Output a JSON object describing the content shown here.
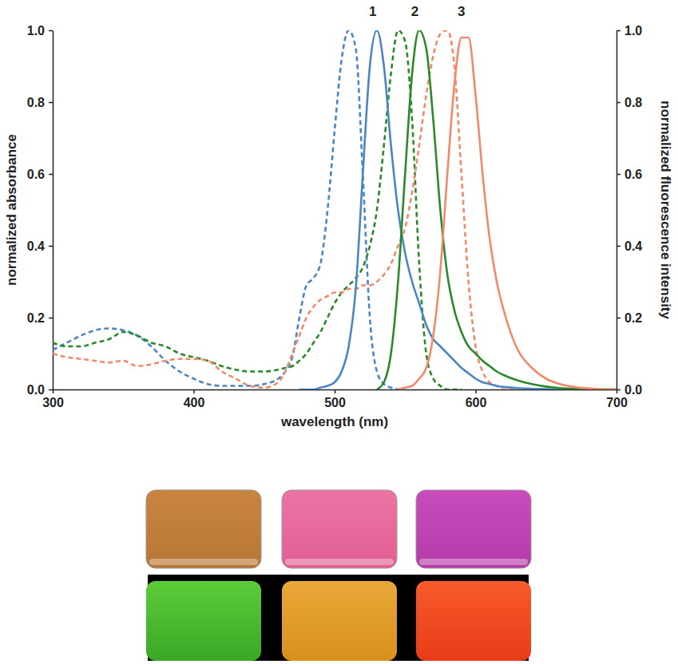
{
  "chart_data": {
    "type": "line",
    "x_label": "wavelength (nm)",
    "y_label": "normalized absorbance",
    "y2_label": "normalized fluorescence intensity",
    "xlim": [
      300,
      700
    ],
    "xticks": [
      300,
      400,
      500,
      600,
      700
    ],
    "ylim": [
      0,
      1.0
    ],
    "yticks": [
      {
        "value": 0,
        "label": "0.0"
      },
      {
        "value": 0.2,
        "label": "0.2"
      },
      {
        "value": 0.4,
        "label": "0.4"
      },
      {
        "value": 0.6,
        "label": "0.6"
      },
      {
        "value": 0.8,
        "label": "0.8"
      },
      {
        "value": 1.0,
        "label": "1.0"
      }
    ],
    "y2lim": [
      0,
      1.0
    ],
    "y2ticks": [
      {
        "value": 0,
        "label": "0.0"
      },
      {
        "value": 0.2,
        "label": "0.2"
      },
      {
        "value": 0.4,
        "label": "0.4"
      },
      {
        "value": 0.6,
        "label": "0.6"
      },
      {
        "value": 0.8,
        "label": "0.8"
      },
      {
        "value": 1.0,
        "label": "1.0"
      }
    ],
    "grid": false,
    "annotations": [
      {
        "text": "1",
        "x": 527,
        "y": 1.04
      },
      {
        "text": "2",
        "x": 557,
        "y": 1.04
      },
      {
        "text": "3",
        "x": 590,
        "y": 1.04
      }
    ],
    "x": [
      300,
      310,
      320,
      330,
      340,
      350,
      360,
      370,
      380,
      390,
      400,
      410,
      420,
      430,
      440,
      450,
      460,
      465,
      470,
      475,
      480,
      485,
      490,
      495,
      500,
      505,
      510,
      515,
      520,
      525,
      530,
      535,
      540,
      545,
      550,
      555,
      560,
      565,
      570,
      575,
      580,
      585,
      590,
      595,
      600,
      605,
      610,
      615,
      620,
      630,
      640,
      650,
      660,
      670,
      680,
      690,
      700
    ],
    "series": [
      {
        "color": "#4a86c5",
        "line_style": "dashed",
        "values": [
          0.11,
          0.13,
          0.15,
          0.165,
          0.17,
          0.165,
          0.15,
          0.12,
          0.08,
          0.05,
          0.03,
          0.015,
          0.01,
          0.01,
          0.01,
          0.015,
          0.03,
          0.05,
          0.09,
          0.2,
          0.29,
          0.31,
          0.35,
          0.5,
          0.72,
          0.92,
          1.0,
          0.95,
          0.6,
          0.2,
          0.05,
          0.015,
          0.005,
          0,
          0,
          null,
          null,
          null,
          null,
          null,
          null,
          null,
          null,
          null,
          null,
          null,
          null,
          null,
          null,
          null,
          null,
          null,
          null,
          null,
          null,
          null,
          null
        ]
      },
      {
        "color": "#2a8a2a",
        "line_style": "dashed",
        "values": [
          0.13,
          0.12,
          0.12,
          0.13,
          0.14,
          0.16,
          0.15,
          0.13,
          0.12,
          0.1,
          0.09,
          0.08,
          0.065,
          0.055,
          0.05,
          0.05,
          0.055,
          0.06,
          0.065,
          0.08,
          0.1,
          0.13,
          0.16,
          0.2,
          0.24,
          0.27,
          0.29,
          0.31,
          0.34,
          0.4,
          0.5,
          0.68,
          0.88,
          1.0,
          0.97,
          0.75,
          0.35,
          0.1,
          0.03,
          0.01,
          0,
          0,
          0,
          null,
          null,
          null,
          null,
          null,
          null,
          null,
          null,
          null,
          null,
          null,
          null,
          null,
          null
        ]
      },
      {
        "color": "#f08a6a",
        "line_style": "dashed",
        "values": [
          0.1,
          0.09,
          0.085,
          0.08,
          0.075,
          0.08,
          0.065,
          0.07,
          0.08,
          0.085,
          0.085,
          0.08,
          0.05,
          0.03,
          0.01,
          0.005,
          0.02,
          0.05,
          0.1,
          0.15,
          0.2,
          0.23,
          0.25,
          0.26,
          0.27,
          0.27,
          0.28,
          0.28,
          0.29,
          0.29,
          0.3,
          0.32,
          0.35,
          0.4,
          0.45,
          0.55,
          0.68,
          0.82,
          0.93,
          0.99,
          1.0,
          0.9,
          0.6,
          0.3,
          0.12,
          0.05,
          0.02,
          0.01,
          0,
          0,
          null,
          null,
          null,
          null,
          null,
          null,
          null
        ]
      },
      {
        "color": "#4a86c5",
        "line_style": "solid",
        "axis": "y2",
        "values": [
          null,
          null,
          null,
          null,
          null,
          null,
          null,
          null,
          null,
          null,
          null,
          null,
          null,
          null,
          null,
          null,
          null,
          null,
          null,
          0,
          0,
          0,
          0.005,
          0.01,
          0.02,
          0.05,
          0.12,
          0.28,
          0.6,
          0.9,
          1.0,
          0.9,
          0.68,
          0.5,
          0.38,
          0.3,
          0.24,
          0.18,
          0.14,
          0.12,
          0.1,
          0.08,
          0.06,
          0.045,
          0.03,
          0.02,
          0.015,
          0.01,
          0.007,
          0.004,
          0.002,
          0.001,
          0,
          0,
          0,
          0,
          0
        ]
      },
      {
        "color": "#2a8a2a",
        "line_style": "solid",
        "axis": "y2",
        "values": [
          null,
          null,
          null,
          null,
          null,
          null,
          null,
          null,
          null,
          null,
          null,
          null,
          null,
          null,
          null,
          null,
          null,
          null,
          null,
          null,
          null,
          null,
          null,
          null,
          null,
          null,
          null,
          null,
          null,
          null,
          0,
          0.02,
          0.1,
          0.3,
          0.6,
          0.88,
          1.0,
          0.95,
          0.75,
          0.5,
          0.32,
          0.22,
          0.16,
          0.12,
          0.1,
          0.08,
          0.065,
          0.05,
          0.04,
          0.025,
          0.015,
          0.008,
          0.004,
          0.002,
          0,
          0,
          0
        ]
      },
      {
        "color": "#f08a6a",
        "line_style": "solid",
        "axis": "y2",
        "values": [
          null,
          null,
          null,
          null,
          null,
          null,
          null,
          null,
          null,
          null,
          null,
          null,
          null,
          null,
          null,
          null,
          null,
          null,
          null,
          null,
          null,
          null,
          null,
          null,
          null,
          null,
          null,
          null,
          null,
          null,
          null,
          null,
          null,
          0,
          0.005,
          0.01,
          0.03,
          0.06,
          0.15,
          0.33,
          0.6,
          0.85,
          0.98,
          0.98,
          0.82,
          0.6,
          0.42,
          0.3,
          0.22,
          0.11,
          0.06,
          0.03,
          0.015,
          0.007,
          0.003,
          0.001,
          0
        ]
      }
    ]
  }
}
